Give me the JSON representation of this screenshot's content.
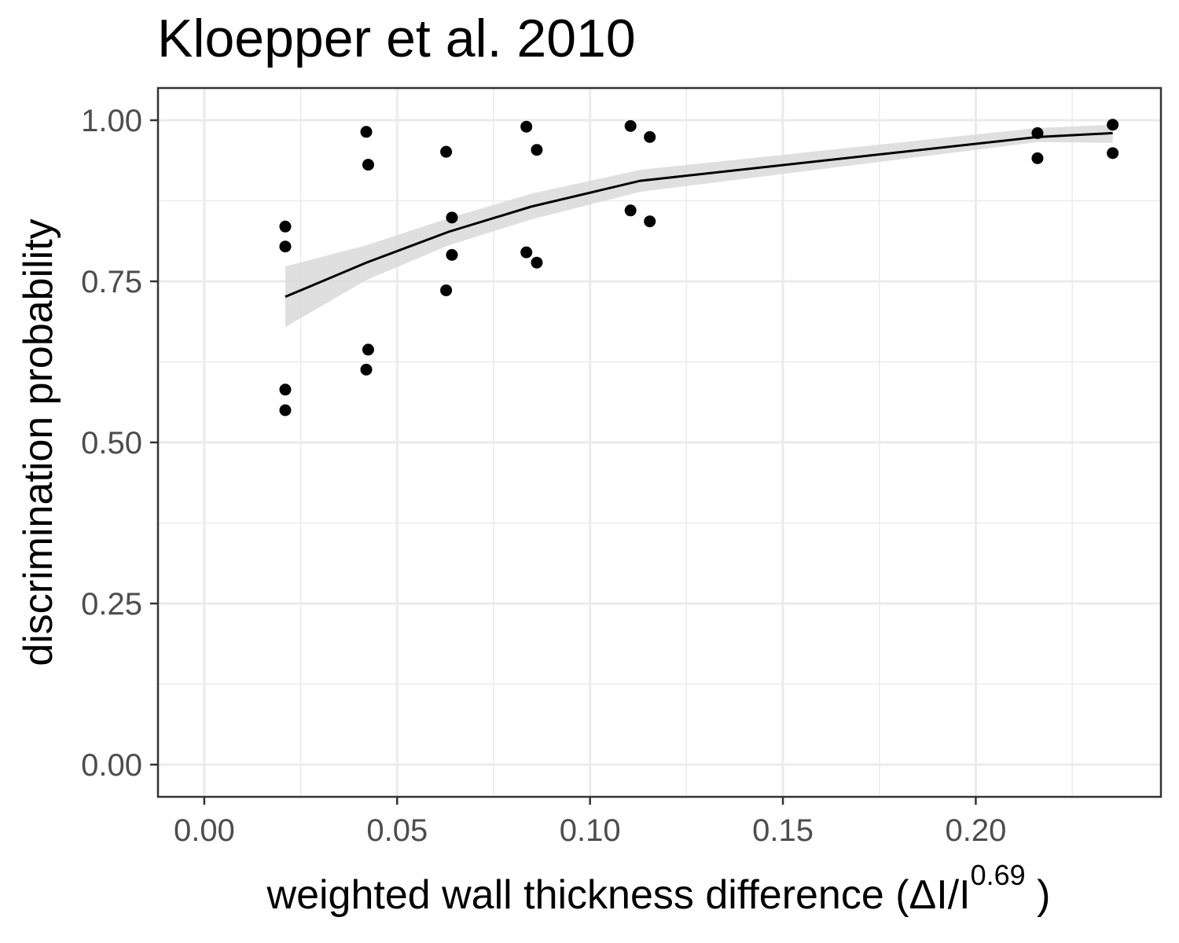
{
  "chart_data": {
    "type": "scatter",
    "title": "Kloepper et al. 2010",
    "xlabel": {
      "main": "weighted  wall thickness  difference (",
      "symbol": "ΔI/I",
      "superscript": "0.69",
      "close": " )"
    },
    "ylabel": "discrimination probability",
    "xlim": [
      -0.012,
      0.248
    ],
    "ylim": [
      -0.05,
      1.05
    ],
    "x_ticks": [
      0.0,
      0.05,
      0.1,
      0.15,
      0.2
    ],
    "x_tick_labels": [
      "0.00",
      "0.05",
      "0.10",
      "0.15",
      "0.20"
    ],
    "y_ticks": [
      0.0,
      0.25,
      0.5,
      0.75,
      1.0
    ],
    "y_tick_labels": [
      "0.00",
      "0.25",
      "0.50",
      "0.75",
      "1.00"
    ],
    "grid": true,
    "points": [
      {
        "x": 0.021,
        "y": 0.835
      },
      {
        "x": 0.021,
        "y": 0.804
      },
      {
        "x": 0.021,
        "y": 0.582
      },
      {
        "x": 0.021,
        "y": 0.55
      },
      {
        "x": 0.042,
        "y": 0.982
      },
      {
        "x": 0.0425,
        "y": 0.931
      },
      {
        "x": 0.0425,
        "y": 0.644
      },
      {
        "x": 0.042,
        "y": 0.613
      },
      {
        "x": 0.0627,
        "y": 0.951
      },
      {
        "x": 0.0642,
        "y": 0.849
      },
      {
        "x": 0.0642,
        "y": 0.791
      },
      {
        "x": 0.0627,
        "y": 0.736
      },
      {
        "x": 0.0835,
        "y": 0.99
      },
      {
        "x": 0.0862,
        "y": 0.954
      },
      {
        "x": 0.0835,
        "y": 0.795
      },
      {
        "x": 0.0862,
        "y": 0.779
      },
      {
        "x": 0.1105,
        "y": 0.991
      },
      {
        "x": 0.1155,
        "y": 0.974
      },
      {
        "x": 0.1105,
        "y": 0.86
      },
      {
        "x": 0.1155,
        "y": 0.843
      },
      {
        "x": 0.216,
        "y": 0.98
      },
      {
        "x": 0.216,
        "y": 0.941
      },
      {
        "x": 0.2355,
        "y": 0.993
      },
      {
        "x": 0.2355,
        "y": 0.949
      }
    ],
    "fit": {
      "x": [
        0.021,
        0.042,
        0.0634,
        0.0848,
        0.113,
        0.216,
        0.2355
      ],
      "y": [
        0.726,
        0.779,
        0.827,
        0.866,
        0.906,
        0.974,
        0.98
      ],
      "lower": [
        0.679,
        0.752,
        0.806,
        0.846,
        0.889,
        0.966,
        0.965
      ],
      "upper": [
        0.773,
        0.806,
        0.848,
        0.886,
        0.923,
        0.988,
        0.993
      ]
    },
    "colors": {
      "points": "#000000",
      "fit_line": "#000000",
      "ribbon": "#d9d9d9",
      "grid": "#ebebeb",
      "panel_border": "#333333",
      "tick_label": "#4d4d4d"
    }
  }
}
